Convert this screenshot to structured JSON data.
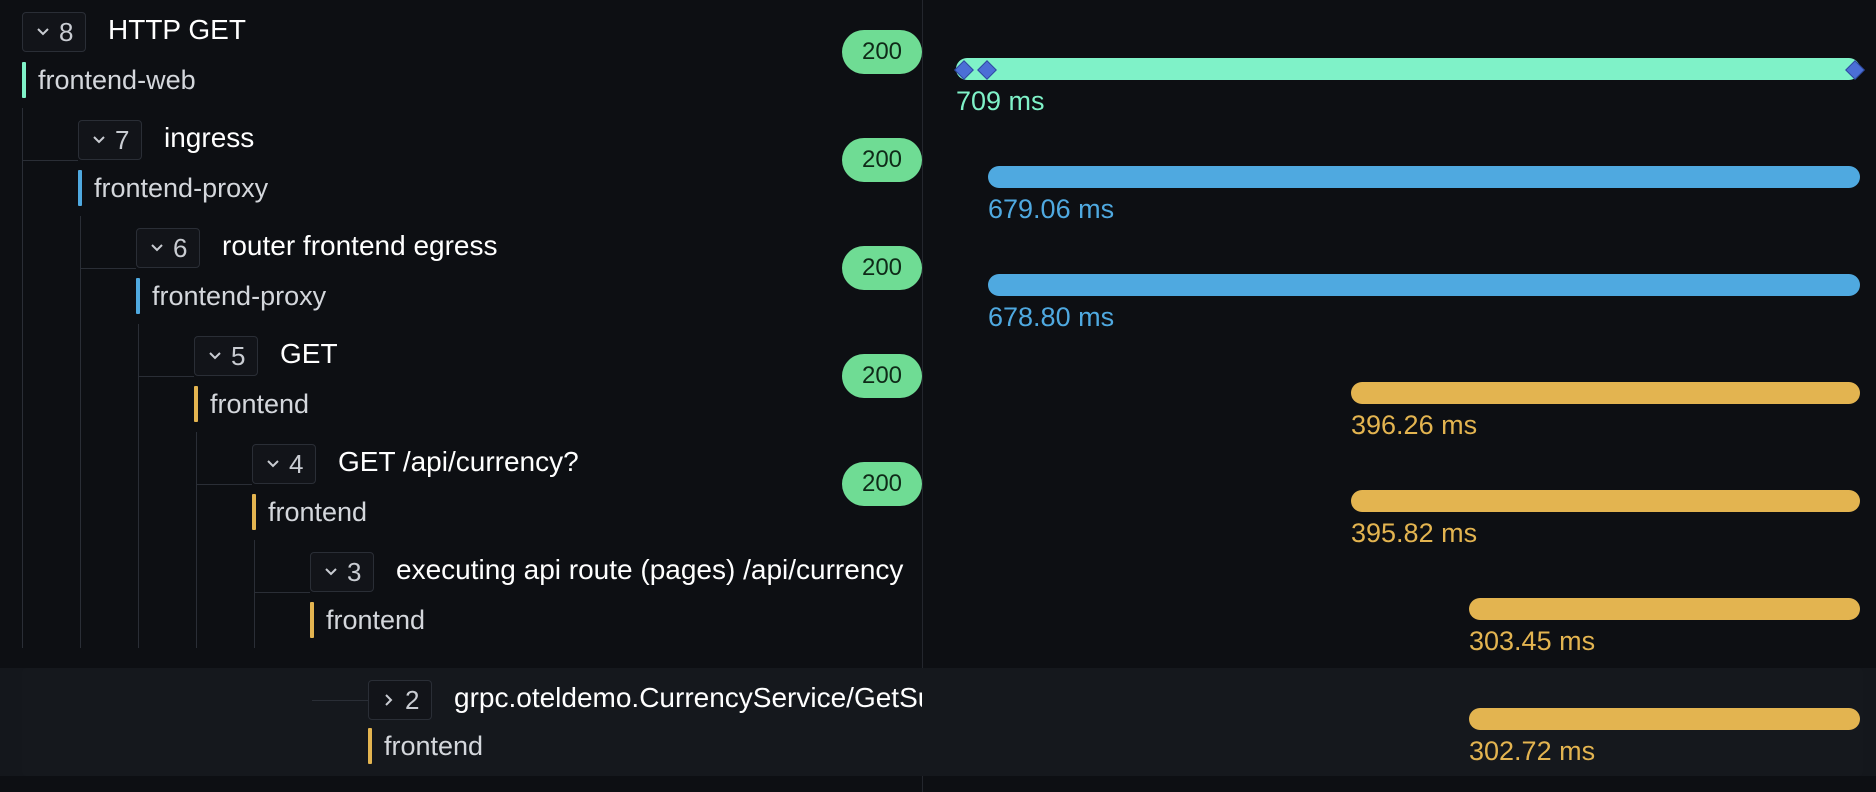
{
  "colors": {
    "frontend_web": "#7ff2c8",
    "frontend_proxy": "#4fa9e0",
    "frontend": "#e3b450",
    "status_ok": "#6fdc94"
  },
  "spans": [
    {
      "count": "8",
      "name": "HTTP GET",
      "service": "frontend-web",
      "status": "200",
      "duration": "709 ms",
      "expanded": true
    },
    {
      "count": "7",
      "name": "ingress",
      "service": "frontend-proxy",
      "status": "200",
      "duration": "679.06 ms",
      "expanded": true
    },
    {
      "count": "6",
      "name": "router frontend egress",
      "service": "frontend-proxy",
      "status": "200",
      "duration": "678.80 ms",
      "expanded": true
    },
    {
      "count": "5",
      "name": "GET",
      "service": "frontend",
      "status": "200",
      "duration": "396.26 ms",
      "expanded": true
    },
    {
      "count": "4",
      "name": "GET /api/currency?",
      "service": "frontend",
      "status": "200",
      "duration": "395.82 ms",
      "expanded": true
    },
    {
      "count": "3",
      "name": "executing api route (pages) /api/currency",
      "service": "frontend",
      "status": "",
      "duration": "303.45 ms",
      "expanded": true
    },
    {
      "count": "2",
      "name": "grpc.oteldemo.CurrencyService/GetSupportedCurrencies",
      "service": "frontend",
      "status": "",
      "duration": "302.72 ms",
      "expanded": false
    }
  ]
}
